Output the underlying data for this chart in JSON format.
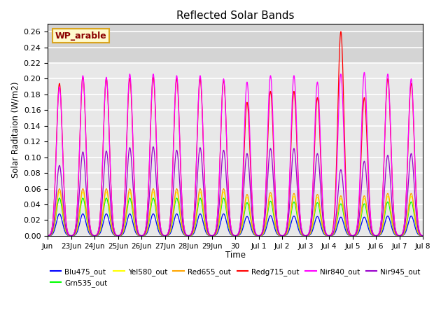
{
  "title": "Reflected Solar Bands",
  "xlabel": "Time",
  "ylabel": "Solar Raditaion (W/m2)",
  "annotation": "WP_arable",
  "ylim": [
    0.0,
    0.27
  ],
  "yticks": [
    0.0,
    0.02,
    0.04,
    0.06,
    0.08,
    0.1,
    0.12,
    0.14,
    0.16,
    0.18,
    0.2,
    0.22,
    0.24,
    0.26
  ],
  "xtick_labels": [
    "Jun",
    "23Jun",
    "24Jun",
    "25Jun",
    "26Jun",
    "27Jun",
    "28Jun",
    "29Jun",
    "30",
    "Jul 1",
    "Jul 2",
    "Jul 3",
    "Jul 4",
    "Jul 5",
    "Jul 6",
    "Jul 7",
    "Jul 8"
  ],
  "n_days": 16,
  "names": [
    "Blu475_out",
    "Grn535_out",
    "Yel580_out",
    "Red655_out",
    "Redg715_out",
    "Nir840_out",
    "Nir945_out"
  ],
  "colors": [
    "#0000FF",
    "#00FF00",
    "#FFFF00",
    "#FFA500",
    "#FF0000",
    "#FF00FF",
    "#9900CC"
  ],
  "peak_normal": [
    0.028,
    0.048,
    0.056,
    0.06,
    0.2,
    0.204,
    0.108
  ],
  "day_peaks": {
    "Blu475_out": [
      1.0,
      1.0,
      1.0,
      1.0,
      1.0,
      1.0,
      1.0,
      1.0,
      0.88,
      0.92,
      0.9,
      0.88,
      0.85,
      0.85,
      0.9,
      0.9
    ],
    "Grn535_out": [
      1.0,
      1.0,
      1.0,
      1.0,
      1.0,
      1.0,
      1.0,
      1.0,
      0.88,
      0.92,
      0.9,
      0.88,
      0.85,
      0.85,
      0.9,
      0.9
    ],
    "Yel580_out": [
      1.0,
      1.0,
      1.0,
      1.0,
      1.0,
      1.0,
      1.0,
      1.0,
      0.88,
      0.92,
      0.9,
      0.88,
      0.85,
      0.85,
      0.9,
      0.9
    ],
    "Red655_out": [
      1.0,
      1.0,
      1.0,
      1.0,
      1.0,
      1.0,
      1.0,
      1.0,
      0.88,
      0.92,
      0.9,
      0.88,
      0.85,
      0.85,
      0.9,
      0.9
    ],
    "Redg715_out": [
      0.97,
      1.01,
      1.0,
      1.0,
      1.01,
      1.0,
      1.0,
      0.99,
      0.85,
      0.92,
      0.92,
      0.88,
      1.3,
      0.88,
      1.0,
      0.97
    ],
    "Nir840_out": [
      0.93,
      1.0,
      0.99,
      1.01,
      1.01,
      1.0,
      1.0,
      0.98,
      0.96,
      1.0,
      1.0,
      0.96,
      1.01,
      1.02,
      1.01,
      0.98
    ],
    "Nir945_out": [
      0.83,
      0.99,
      1.0,
      1.04,
      1.05,
      1.01,
      1.04,
      1.01,
      0.97,
      1.03,
      1.03,
      0.97,
      0.78,
      0.88,
      0.95,
      0.97
    ]
  },
  "sigma": 0.13,
  "background_color": "#E8E8E8",
  "grid_color": "#FFFFFF",
  "legend_ncol": 6
}
